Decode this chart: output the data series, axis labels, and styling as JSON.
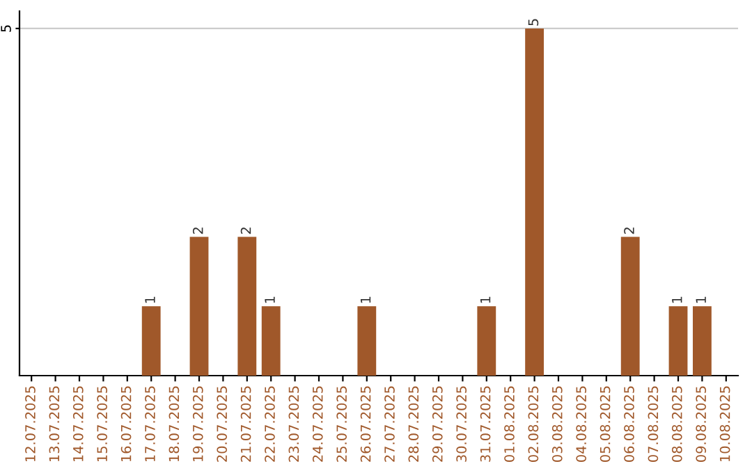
{
  "chart_data": {
    "type": "bar",
    "categories": [
      "12.07.2025",
      "13.07.2025",
      "14.07.2025",
      "15.07.2025",
      "16.07.2025",
      "17.07.2025",
      "18.07.2025",
      "19.07.2025",
      "20.07.2025",
      "21.07.2025",
      "22.07.2025",
      "23.07.2025",
      "24.07.2025",
      "25.07.2025",
      "26.07.2025",
      "27.07.2025",
      "28.07.2025",
      "29.07.2025",
      "30.07.2025",
      "31.07.2025",
      "01.08.2025",
      "02.08.2025",
      "03.08.2025",
      "04.08.2025",
      "05.08.2025",
      "06.08.2025",
      "07.08.2025",
      "08.08.2025",
      "09.08.2025",
      "10.08.2025"
    ],
    "values": [
      0,
      0,
      0,
      0,
      0,
      1,
      0,
      2,
      0,
      2,
      1,
      0,
      0,
      0,
      1,
      0,
      0,
      0,
      0,
      1,
      0,
      5,
      0,
      0,
      0,
      2,
      0,
      1,
      1,
      0
    ],
    "color": "#a0582a",
    "value_labels": [
      null,
      null,
      null,
      null,
      null,
      "1",
      null,
      "2",
      null,
      "2",
      "1",
      null,
      null,
      null,
      "1",
      null,
      null,
      null,
      null,
      "1",
      null,
      "5",
      null,
      null,
      null,
      "2",
      null,
      "1",
      "1",
      null
    ],
    "ylim": [
      0,
      5.25
    ],
    "yticks": [
      5
    ],
    "grid": "y"
  }
}
